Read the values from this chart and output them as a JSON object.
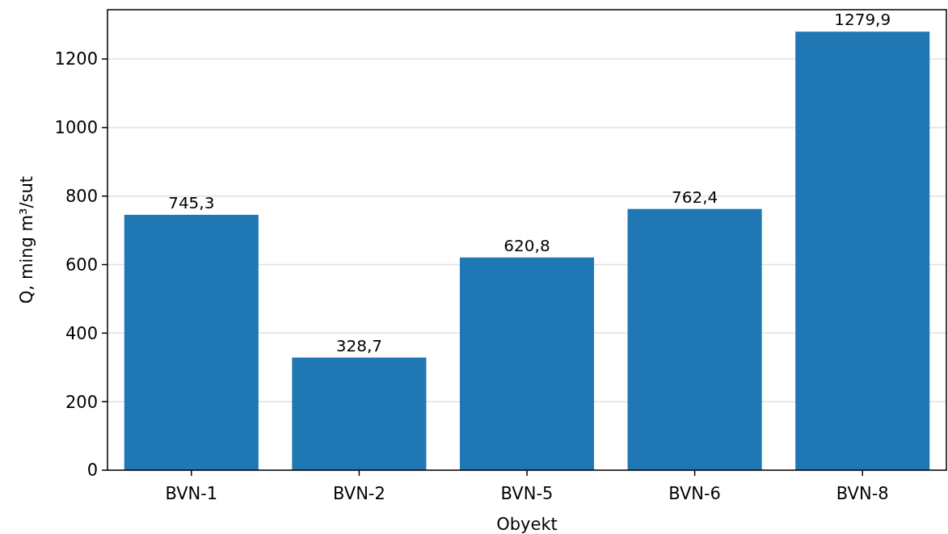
{
  "chart_data": {
    "type": "bar",
    "xlabel": "Obyekt",
    "ylabel": "Q, ming m³/sut",
    "categories": [
      "BVN-1",
      "BVN-2",
      "BVN-5",
      "BVN-6",
      "BVN-8"
    ],
    "values": [
      745.3,
      328.7,
      620.8,
      762.4,
      1279.9
    ],
    "value_labels": [
      "745,3",
      "328,7",
      "620,8",
      "762,4",
      "1279,9"
    ],
    "color": "#1f77b4",
    "ylim": [
      0,
      1344
    ],
    "yticks": [
      0,
      200,
      400,
      600,
      800,
      1000,
      1200
    ],
    "grid": "y"
  }
}
